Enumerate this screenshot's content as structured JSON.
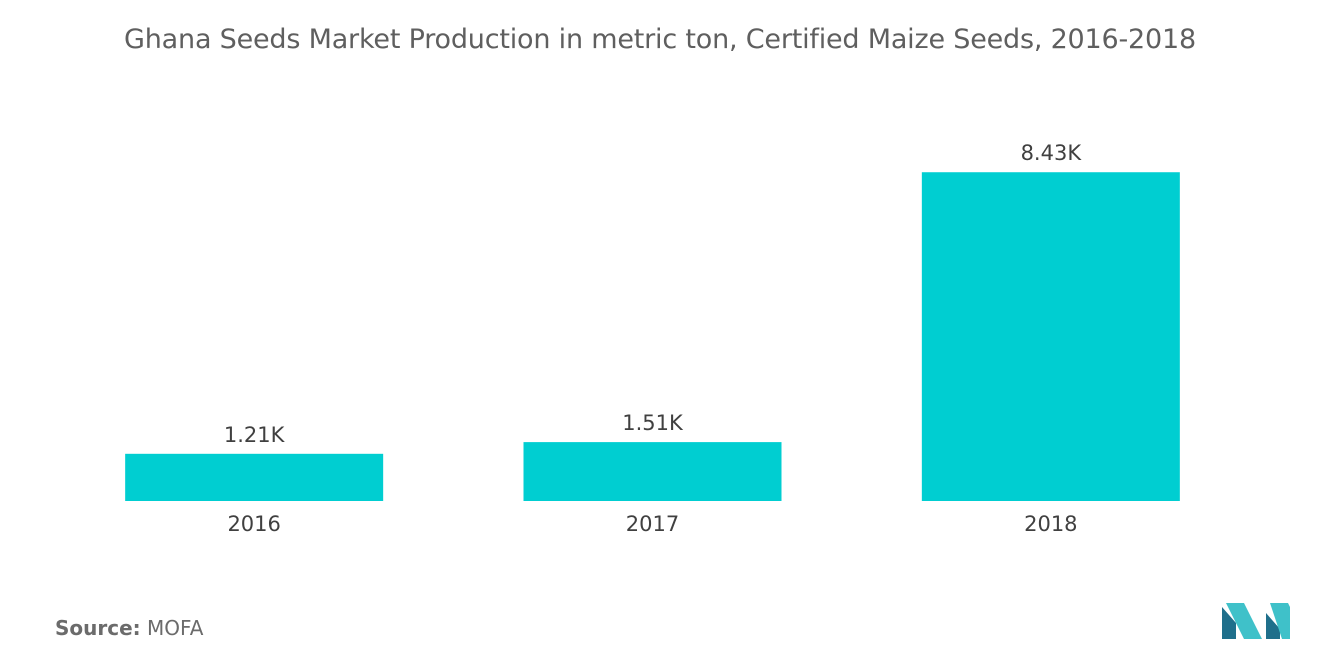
{
  "chart_data": {
    "type": "bar",
    "title": "Ghana Seeds Market  Production in metric ton, Certified Maize Seeds, 2016-2018",
    "categories": [
      "2016",
      "2017",
      "2018"
    ],
    "values": [
      1210,
      1510,
      8430
    ],
    "data_labels": [
      "1.21K",
      "1.51K",
      "8.43K"
    ],
    "xlabel": "",
    "ylabel": "",
    "ylim": [
      0,
      9000
    ],
    "grid": false,
    "legend": "none",
    "bar_color": "#00ced1"
  },
  "source": {
    "label": "Source:",
    "value": "MOFA"
  },
  "logo": {
    "icon": "mordor-logo-icon",
    "color_dark": "#1f6f8b",
    "color_light": "#3fc1c9"
  }
}
